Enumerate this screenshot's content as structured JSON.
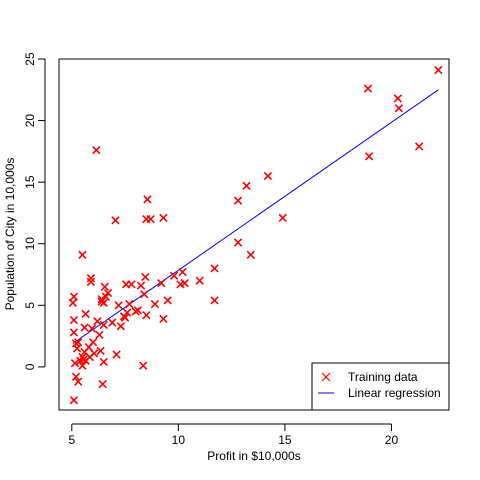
{
  "chart_data": {
    "type": "scatter",
    "title": "",
    "xlabel": "Profit in $10,000s",
    "ylabel": "Population of City in 10,000s",
    "xlim": [
      4.4,
      22.7
    ],
    "ylim": [
      -3.5,
      25
    ],
    "xticks": [
      5,
      10,
      15,
      20
    ],
    "yticks": [
      0,
      5,
      10,
      15,
      20,
      25
    ],
    "grid": false,
    "legend": {
      "placement": "bottom-right",
      "entries": [
        "Training data",
        "Linear regression"
      ]
    },
    "series": [
      {
        "name": "Training data",
        "kind": "points",
        "marker": "x",
        "color": "#ff0000",
        "points": [
          [
            5.1,
            -2.7
          ],
          [
            5.1,
            5.7
          ],
          [
            5.05,
            5.2
          ],
          [
            5.1,
            3.8
          ],
          [
            5.1,
            2.8
          ],
          [
            5.3,
            2.0
          ],
          [
            5.2,
            1.9
          ],
          [
            5.25,
            1.5
          ],
          [
            5.15,
            0.3
          ],
          [
            5.2,
            -0.8
          ],
          [
            5.3,
            -1.2
          ],
          [
            5.4,
            0.5
          ],
          [
            5.5,
            0.1
          ],
          [
            5.5,
            0.8
          ],
          [
            5.6,
            1.2
          ],
          [
            5.55,
            0.6
          ],
          [
            5.65,
            0.5
          ],
          [
            5.6,
            3.2
          ],
          [
            5.65,
            4.3
          ],
          [
            5.5,
            9.1
          ],
          [
            5.8,
            1.6
          ],
          [
            5.85,
            0.8
          ],
          [
            5.9,
            6.9
          ],
          [
            5.9,
            7.2
          ],
          [
            5.95,
            3.1
          ],
          [
            6.0,
            2.0
          ],
          [
            6.05,
            1.1
          ],
          [
            6.15,
            17.6
          ],
          [
            6.2,
            3.7
          ],
          [
            6.3,
            2.6
          ],
          [
            6.35,
            1.3
          ],
          [
            6.4,
            5.3
          ],
          [
            6.4,
            5.5
          ],
          [
            6.45,
            -1.4
          ],
          [
            6.5,
            0.4
          ],
          [
            6.5,
            3.4
          ],
          [
            6.5,
            5.2
          ],
          [
            6.55,
            6.5
          ],
          [
            6.6,
            5.7
          ],
          [
            6.7,
            6.0
          ],
          [
            6.9,
            3.6
          ],
          [
            7.05,
            11.9
          ],
          [
            7.1,
            1.0
          ],
          [
            7.2,
            5.0
          ],
          [
            7.3,
            3.3
          ],
          [
            7.45,
            4.1
          ],
          [
            7.5,
            4.0
          ],
          [
            7.6,
            4.4
          ],
          [
            7.55,
            6.7
          ],
          [
            7.7,
            5.1
          ],
          [
            7.8,
            6.7
          ],
          [
            8.0,
            4.5
          ],
          [
            8.1,
            4.6
          ],
          [
            8.25,
            6.6
          ],
          [
            8.35,
            0.1
          ],
          [
            8.4,
            5.9
          ],
          [
            8.45,
            7.3
          ],
          [
            8.5,
            4.2
          ],
          [
            8.5,
            12.0
          ],
          [
            8.55,
            13.6
          ],
          [
            8.7,
            12.0
          ],
          [
            8.9,
            5.1
          ],
          [
            9.2,
            6.8
          ],
          [
            9.3,
            12.1
          ],
          [
            9.3,
            3.9
          ],
          [
            9.5,
            5.4
          ],
          [
            9.8,
            7.4
          ],
          [
            10.1,
            6.7
          ],
          [
            10.2,
            7.7
          ],
          [
            10.3,
            6.8
          ],
          [
            11.0,
            7.0
          ],
          [
            11.7,
            8.0
          ],
          [
            11.7,
            5.4
          ],
          [
            12.8,
            10.1
          ],
          [
            12.8,
            13.5
          ],
          [
            13.2,
            14.7
          ],
          [
            13.4,
            9.1
          ],
          [
            14.2,
            15.5
          ],
          [
            14.9,
            12.1
          ],
          [
            18.9,
            22.6
          ],
          [
            18.95,
            17.1
          ],
          [
            20.3,
            21.8
          ],
          [
            20.35,
            21.0
          ],
          [
            21.3,
            17.9
          ],
          [
            22.2,
            24.1
          ]
        ]
      },
      {
        "name": "Linear regression",
        "kind": "line",
        "color": "#0000ff",
        "x": [
          5.05,
          22.2
        ],
        "y": [
          1.9,
          22.5
        ]
      }
    ]
  }
}
